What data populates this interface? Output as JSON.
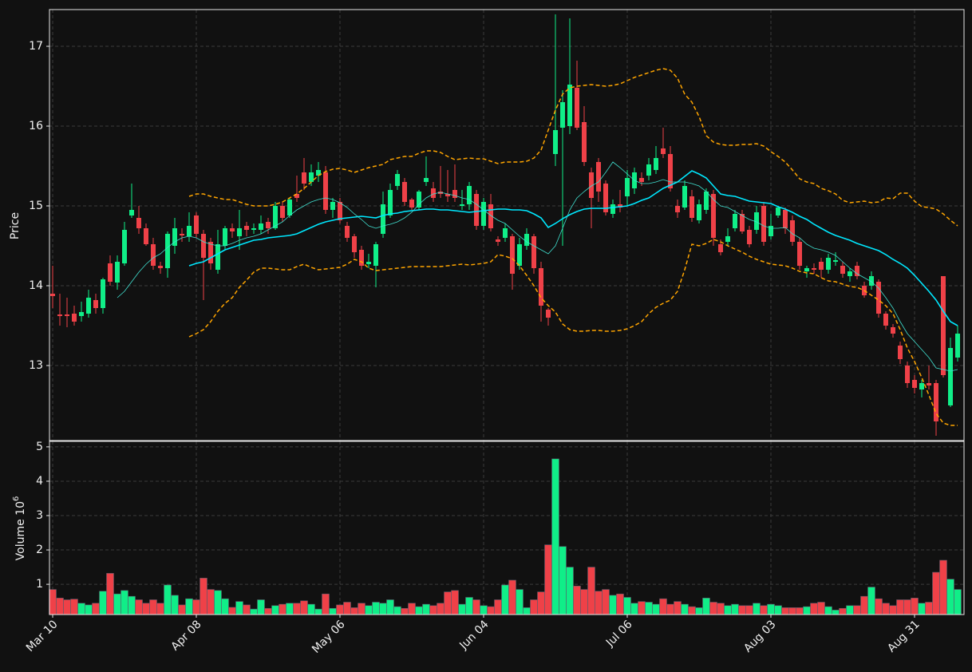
{
  "chart_data": {
    "type": "candlestick",
    "ylabel": "Price",
    "ylim": [
      12.06,
      17.46
    ],
    "yticks": [
      13,
      14,
      15,
      16,
      17
    ],
    "grid": true,
    "up_color": "#10ee88",
    "down_color": "#ef4148",
    "categories": [
      "Mar 10",
      null,
      null,
      null,
      null,
      null,
      null,
      null,
      null,
      null,
      null,
      null,
      null,
      null,
      null,
      null,
      null,
      null,
      null,
      null,
      "Apr 08",
      null,
      null,
      null,
      null,
      null,
      null,
      null,
      null,
      null,
      null,
      null,
      null,
      null,
      null,
      null,
      null,
      null,
      null,
      null,
      "May 06",
      null,
      null,
      null,
      null,
      null,
      null,
      null,
      null,
      null,
      null,
      null,
      null,
      null,
      null,
      null,
      null,
      null,
      null,
      null,
      "Jun 04",
      null,
      null,
      null,
      null,
      null,
      null,
      null,
      null,
      null,
      null,
      null,
      null,
      null,
      null,
      null,
      null,
      null,
      null,
      null,
      "Jul 06",
      null,
      null,
      null,
      null,
      null,
      null,
      null,
      null,
      null,
      null,
      null,
      null,
      null,
      null,
      null,
      null,
      null,
      null,
      null,
      "Aug 03",
      null,
      null,
      null,
      null,
      null,
      null,
      null,
      null,
      null,
      null,
      null,
      null,
      null,
      null,
      null,
      null,
      null,
      null,
      null,
      "Aug 31",
      null,
      null,
      null,
      null,
      null,
      null
    ],
    "open": [
      13.9,
      13.64,
      13.64,
      13.65,
      13.62,
      13.65,
      13.82,
      13.72,
      14.28,
      14.04,
      14.28,
      14.88,
      14.85,
      14.72,
      14.52,
      14.25,
      14.22,
      14.5,
      14.65,
      14.62,
      14.88,
      14.65,
      14.55,
      14.2,
      14.5,
      14.72,
      14.62,
      14.75,
      14.7,
      14.7,
      14.8,
      14.72,
      15.0,
      14.88,
      15.15,
      15.42,
      15.3,
      15.38,
      15.42,
      14.95,
      15.05,
      14.75,
      14.62,
      14.45,
      14.27,
      14.25,
      14.65,
      14.88,
      15.25,
      15.3,
      15.08,
      14.98,
      15.3,
      15.22,
      15.18,
      15.15,
      15.2,
      15.0,
      15.02,
      15.15,
      14.75,
      15.02,
      14.58,
      14.6,
      14.62,
      14.25,
      14.5,
      14.62,
      14.22,
      13.7,
      15.65,
      15.98,
      16.0,
      16.48,
      16.05,
      15.42,
      15.55,
      15.28,
      14.9,
      15.02,
      15.12,
      15.22,
      15.35,
      15.38,
      15.45,
      15.72,
      15.65,
      15.0,
      14.98,
      15.12,
      14.82,
      14.95,
      15.15,
      14.52,
      14.55,
      14.72,
      14.9,
      14.7,
      14.7,
      15.0,
      14.62,
      14.88,
      14.95,
      14.82,
      14.55,
      14.18,
      14.22,
      14.3,
      14.2,
      14.3,
      14.25,
      14.12,
      14.25,
      14.0,
      14.0,
      14.05,
      13.65,
      13.48,
      13.25,
      13.0,
      12.82,
      12.7,
      12.78,
      12.78,
      14.12,
      12.5,
      13.1
    ],
    "high": [
      14.25,
      13.9,
      13.85,
      13.75,
      13.8,
      13.95,
      13.9,
      14.1,
      14.38,
      14.38,
      14.8,
      15.28,
      15.0,
      14.78,
      14.6,
      14.3,
      14.68,
      14.85,
      14.72,
      14.92,
      14.92,
      14.7,
      14.6,
      14.7,
      14.75,
      14.78,
      14.95,
      14.8,
      14.78,
      14.88,
      14.85,
      15.05,
      15.05,
      15.1,
      15.38,
      15.6,
      15.52,
      15.55,
      15.5,
      15.1,
      15.1,
      14.8,
      14.65,
      14.5,
      14.4,
      14.55,
      15.18,
      15.28,
      15.45,
      15.35,
      15.1,
      15.2,
      15.62,
      15.3,
      15.5,
      15.45,
      15.52,
      15.2,
      15.3,
      15.2,
      15.1,
      15.15,
      14.62,
      14.78,
      14.65,
      14.6,
      14.72,
      14.65,
      14.3,
      13.72,
      17.4,
      16.45,
      17.35,
      16.82,
      16.25,
      15.48,
      15.6,
      15.32,
      15.08,
      15.2,
      15.45,
      15.48,
      15.42,
      15.6,
      15.75,
      15.98,
      15.75,
      15.08,
      15.32,
      15.2,
      15.08,
      15.22,
      15.2,
      14.58,
      14.72,
      14.95,
      14.95,
      14.75,
      15.0,
      15.05,
      14.9,
      15.0,
      14.98,
      14.88,
      14.6,
      14.25,
      14.28,
      14.35,
      14.4,
      14.42,
      14.3,
      14.22,
      14.3,
      14.05,
      14.18,
      14.08,
      13.68,
      13.52,
      13.3,
      13.05,
      12.88,
      12.82,
      13.0,
      12.82,
      14.12,
      13.35,
      13.5
    ],
    "low": [
      13.72,
      13.5,
      13.48,
      13.5,
      13.55,
      13.6,
      13.65,
      13.65,
      14.0,
      13.95,
      14.25,
      14.85,
      14.65,
      14.5,
      14.2,
      14.15,
      14.1,
      14.4,
      14.55,
      14.55,
      14.6,
      13.82,
      14.2,
      14.15,
      14.45,
      14.6,
      14.45,
      14.62,
      14.65,
      14.65,
      14.65,
      14.7,
      14.8,
      14.85,
      15.05,
      15.2,
      15.25,
      15.3,
      14.9,
      14.85,
      14.78,
      14.55,
      14.35,
      14.2,
      14.22,
      13.98,
      14.6,
      14.85,
      15.2,
      15.0,
      14.95,
      14.95,
      15.25,
      15.05,
      15.1,
      15.05,
      15.05,
      14.95,
      14.95,
      14.7,
      14.7,
      14.68,
      14.5,
      14.55,
      13.95,
      14.2,
      14.45,
      14.15,
      13.55,
      13.5,
      15.5,
      14.5,
      15.9,
      15.95,
      15.5,
      14.72,
      15.05,
      14.88,
      14.85,
      14.92,
      15.0,
      15.15,
      15.25,
      15.32,
      15.4,
      15.6,
      15.18,
      14.85,
      14.95,
      14.8,
      14.78,
      14.9,
      14.5,
      14.38,
      14.5,
      14.68,
      14.65,
      14.48,
      14.65,
      14.5,
      14.58,
      14.85,
      14.65,
      14.5,
      14.2,
      14.1,
      14.15,
      14.1,
      14.15,
      14.25,
      14.1,
      14.05,
      14.08,
      13.85,
      13.95,
      13.6,
      13.45,
      13.35,
      13.02,
      12.72,
      12.65,
      12.6,
      12.7,
      12.12,
      12.85,
      12.48,
      13.05
    ],
    "close": [
      13.87,
      13.62,
      13.62,
      13.55,
      13.67,
      13.85,
      13.72,
      14.08,
      14.05,
      14.3,
      14.7,
      14.95,
      14.72,
      14.52,
      14.25,
      14.22,
      14.65,
      14.72,
      14.63,
      14.75,
      14.65,
      14.35,
      14.28,
      14.52,
      14.72,
      14.68,
      14.72,
      14.7,
      14.72,
      14.78,
      14.72,
      15.0,
      14.85,
      15.08,
      15.1,
      15.28,
      15.42,
      15.45,
      14.95,
      15.05,
      14.82,
      14.6,
      14.42,
      14.25,
      14.3,
      14.52,
      15.02,
      15.2,
      15.4,
      15.05,
      14.98,
      15.18,
      15.35,
      15.1,
      15.15,
      15.12,
      15.1,
      15.02,
      15.25,
      14.75,
      15.05,
      14.72,
      14.55,
      14.72,
      14.15,
      14.52,
      14.65,
      14.22,
      13.75,
      13.6,
      15.95,
      16.3,
      16.52,
      15.98,
      15.55,
      15.1,
      15.18,
      14.92,
      15.02,
      14.98,
      15.35,
      15.42,
      15.3,
      15.52,
      15.6,
      15.65,
      15.22,
      14.92,
      15.25,
      14.85,
      15.02,
      15.18,
      14.6,
      14.42,
      14.62,
      14.9,
      14.68,
      14.52,
      14.92,
      14.55,
      14.75,
      14.98,
      14.72,
      14.55,
      14.25,
      14.22,
      14.2,
      14.2,
      14.35,
      14.32,
      14.15,
      14.18,
      14.12,
      13.88,
      14.12,
      13.65,
      13.5,
      13.4,
      13.08,
      12.78,
      12.72,
      12.78,
      12.75,
      12.3,
      12.88,
      13.22,
      13.4
    ],
    "overlays": [
      {
        "color": "#00e8ff",
        "style": "solid",
        "values": [
          null,
          null,
          null,
          null,
          null,
          null,
          null,
          null,
          null,
          null,
          null,
          null,
          null,
          null,
          null,
          null,
          null,
          null,
          null,
          14.25,
          14.28,
          14.3,
          14.35,
          14.4,
          14.45,
          14.48,
          14.51,
          14.54,
          14.57,
          14.58,
          14.6,
          14.61,
          14.62,
          14.63,
          14.65,
          14.69,
          14.73,
          14.77,
          14.8,
          14.82,
          14.84,
          14.85,
          14.86,
          14.87,
          14.86,
          14.85,
          14.88,
          14.9,
          14.91,
          14.93,
          14.94,
          14.95,
          14.96,
          14.96,
          14.95,
          14.95,
          14.94,
          14.93,
          14.92,
          14.93,
          14.94,
          14.95,
          14.96,
          14.96,
          14.95,
          14.95,
          14.94,
          14.9,
          14.85,
          14.73,
          14.78,
          14.84,
          14.89,
          14.93,
          14.96,
          14.97,
          14.97,
          14.97,
          14.98,
          14.99,
          15.0,
          15.03,
          15.07,
          15.1,
          15.16,
          15.22,
          15.26,
          15.3,
          15.37,
          15.44,
          15.4,
          15.35,
          15.25,
          15.15,
          15.13,
          15.12,
          15.09,
          15.06,
          15.05,
          15.04,
          15.03,
          14.99,
          14.96,
          14.92,
          14.87,
          14.83,
          14.77,
          14.72,
          14.67,
          14.63,
          14.6,
          14.57,
          14.53,
          14.5,
          14.47,
          14.44,
          14.39,
          14.33,
          14.28,
          14.22,
          14.13,
          14.03,
          13.93,
          13.82,
          13.68,
          13.55,
          13.5
        ]
      },
      {
        "color": "#40e0d0",
        "style": "solid",
        "values": [
          null,
          null,
          null,
          null,
          null,
          null,
          null,
          null,
          null,
          13.85,
          13.93,
          14.05,
          14.17,
          14.27,
          14.35,
          14.4,
          14.48,
          14.55,
          14.6,
          14.62,
          14.6,
          14.55,
          14.52,
          14.5,
          14.5,
          14.53,
          14.57,
          14.6,
          14.62,
          14.65,
          14.7,
          14.75,
          14.8,
          14.88,
          14.95,
          15.0,
          15.05,
          15.08,
          15.1,
          15.08,
          15.04,
          14.98,
          14.9,
          14.83,
          14.75,
          14.72,
          14.75,
          14.77,
          14.8,
          14.85,
          14.92,
          15.02,
          15.1,
          15.15,
          15.17,
          15.15,
          15.13,
          15.1,
          15.08,
          15.02,
          14.95,
          14.88,
          14.82,
          14.78,
          14.7,
          14.62,
          14.55,
          14.5,
          14.45,
          14.4,
          14.5,
          14.72,
          14.95,
          15.1,
          15.18,
          15.25,
          15.3,
          15.42,
          15.55,
          15.48,
          15.4,
          15.32,
          15.28,
          15.28,
          15.3,
          15.33,
          15.3,
          15.3,
          15.3,
          15.28,
          15.25,
          15.18,
          15.08,
          15.0,
          14.98,
          14.93,
          14.88,
          14.83,
          14.8,
          14.75,
          14.72,
          14.72,
          14.73,
          14.65,
          14.6,
          14.52,
          14.47,
          14.45,
          14.42,
          14.38,
          14.3,
          14.22,
          14.15,
          14.1,
          14.05,
          13.97,
          13.85,
          13.72,
          13.55,
          13.4,
          13.3,
          13.2,
          13.1,
          12.97,
          12.95,
          12.93,
          12.95
        ]
      },
      {
        "color": "#ffa500",
        "style": "dashed",
        "values": [
          null,
          null,
          null,
          null,
          null,
          null,
          null,
          null,
          null,
          null,
          null,
          null,
          null,
          null,
          null,
          null,
          null,
          null,
          null,
          15.12,
          15.15,
          15.15,
          15.12,
          15.1,
          15.08,
          15.08,
          15.05,
          15.02,
          15.0,
          15.0,
          15.0,
          15.02,
          15.05,
          15.1,
          15.15,
          15.22,
          15.3,
          15.38,
          15.43,
          15.46,
          15.47,
          15.45,
          15.42,
          15.45,
          15.48,
          15.5,
          15.52,
          15.58,
          15.6,
          15.62,
          15.62,
          15.66,
          15.69,
          15.69,
          15.67,
          15.62,
          15.58,
          15.59,
          15.6,
          15.59,
          15.59,
          15.56,
          15.53,
          15.55,
          15.55,
          15.55,
          15.56,
          15.6,
          15.7,
          15.95,
          16.2,
          16.4,
          16.48,
          16.5,
          16.51,
          16.52,
          16.51,
          16.5,
          16.51,
          16.53,
          16.57,
          16.61,
          16.64,
          16.67,
          16.7,
          16.72,
          16.7,
          16.6,
          16.4,
          16.3,
          16.12,
          15.88,
          15.8,
          15.77,
          15.76,
          15.76,
          15.77,
          15.77,
          15.78,
          15.75,
          15.68,
          15.62,
          15.55,
          15.45,
          15.34,
          15.3,
          15.28,
          15.22,
          15.19,
          15.15,
          15.07,
          15.04,
          15.05,
          15.06,
          15.04,
          15.05,
          15.1,
          15.09,
          15.16,
          15.16,
          15.06,
          14.99,
          14.98,
          14.96,
          14.9,
          14.82,
          14.75
        ]
      },
      {
        "color": "#ffa500",
        "style": "dashed",
        "values": [
          null,
          null,
          null,
          null,
          null,
          null,
          null,
          null,
          null,
          null,
          null,
          null,
          null,
          null,
          null,
          null,
          null,
          null,
          null,
          13.36,
          13.4,
          13.45,
          13.55,
          13.68,
          13.78,
          13.85,
          13.98,
          14.07,
          14.17,
          14.22,
          14.22,
          14.21,
          14.2,
          14.2,
          14.24,
          14.27,
          14.23,
          14.2,
          14.21,
          14.22,
          14.23,
          14.27,
          14.33,
          14.3,
          14.22,
          14.19,
          14.2,
          14.21,
          14.22,
          14.23,
          14.24,
          14.24,
          14.24,
          14.24,
          14.24,
          14.25,
          14.26,
          14.27,
          14.26,
          14.27,
          14.28,
          14.3,
          14.39,
          14.37,
          14.34,
          14.25,
          14.13,
          14.0,
          13.85,
          13.75,
          13.67,
          13.52,
          13.45,
          13.43,
          13.43,
          13.44,
          13.44,
          13.43,
          13.43,
          13.44,
          13.46,
          13.5,
          13.55,
          13.65,
          13.73,
          13.78,
          13.82,
          13.93,
          14.2,
          14.52,
          14.5,
          14.53,
          14.58,
          14.55,
          14.5,
          14.46,
          14.42,
          14.37,
          14.33,
          14.3,
          14.27,
          14.26,
          14.25,
          14.22,
          14.18,
          14.16,
          14.15,
          14.1,
          14.06,
          14.05,
          14.02,
          13.99,
          13.98,
          13.94,
          13.88,
          13.82,
          13.75,
          13.65,
          13.45,
          13.22,
          13.05,
          12.85,
          12.63,
          12.4,
          12.28,
          12.25,
          12.25
        ]
      }
    ],
    "volume_label": "Volume  10",
    "volume_label_exponent": "6",
    "volume_ylim": [
      0.12,
      5.16
    ],
    "volume_yticks": [
      1,
      2,
      3,
      4,
      5
    ],
    "volume": [
      0.85,
      0.6,
      0.55,
      0.57,
      0.45,
      0.4,
      0.45,
      0.8,
      1.32,
      0.72,
      0.82,
      0.65,
      0.55,
      0.45,
      0.55,
      0.45,
      0.98,
      0.68,
      0.4,
      0.58,
      0.55,
      1.18,
      0.85,
      0.82,
      0.58,
      0.33,
      0.5,
      0.4,
      0.28,
      0.55,
      0.3,
      0.38,
      0.42,
      0.45,
      0.45,
      0.52,
      0.42,
      0.28,
      0.72,
      0.3,
      0.4,
      0.48,
      0.32,
      0.45,
      0.38,
      0.48,
      0.45,
      0.55,
      0.35,
      0.3,
      0.45,
      0.35,
      0.42,
      0.38,
      0.45,
      0.78,
      0.82,
      0.42,
      0.62,
      0.55,
      0.38,
      0.35,
      0.55,
      0.98,
      1.12,
      0.85,
      0.32,
      0.55,
      0.78,
      2.15,
      4.65,
      2.1,
      1.5,
      0.95,
      0.85,
      1.5,
      0.8,
      0.85,
      0.68,
      0.72,
      0.62,
      0.45,
      0.5,
      0.48,
      0.42,
      0.58,
      0.42,
      0.5,
      0.42,
      0.35,
      0.32,
      0.6,
      0.48,
      0.45,
      0.38,
      0.42,
      0.38,
      0.38,
      0.45,
      0.38,
      0.42,
      0.38,
      0.32,
      0.32,
      0.32,
      0.35,
      0.45,
      0.48,
      0.35,
      0.25,
      0.3,
      0.38,
      0.38,
      0.65,
      0.92,
      0.58,
      0.45,
      0.38,
      0.55,
      0.55,
      0.6,
      0.45,
      0.48,
      1.35,
      1.7,
      1.15,
      0.85
    ]
  }
}
